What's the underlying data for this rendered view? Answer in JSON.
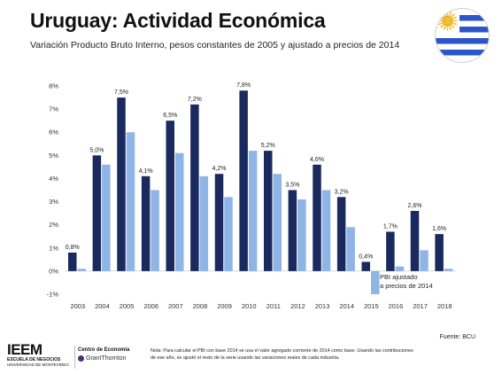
{
  "header": {
    "title": "Uruguay: Actividad Económica",
    "subtitle": "Variación Producto Bruto Interno, pesos constantes de 2005 y ajustado a precios de 2014"
  },
  "chart_data": {
    "type": "bar",
    "title": "",
    "xlabel": "",
    "ylabel": "",
    "ylim": [
      -1,
      8
    ],
    "yticks": [
      "-1%",
      "0%",
      "1%",
      "2%",
      "3%",
      "4%",
      "5%",
      "6%",
      "7%",
      "8%"
    ],
    "grid": false,
    "categories": [
      "2003",
      "2004",
      "2005",
      "2006",
      "2007",
      "2008",
      "2009",
      "2010",
      "2011",
      "2012",
      "2013",
      "2014",
      "2015",
      "2016",
      "2017",
      "2018"
    ],
    "series": [
      {
        "name": "",
        "color": "#1b2a5e",
        "values": [
          0.8,
          5.0,
          7.5,
          4.1,
          6.5,
          7.2,
          4.2,
          7.8,
          5.2,
          3.5,
          4.6,
          3.2,
          0.4,
          1.7,
          2.6,
          1.6
        ],
        "labels": [
          "0,8%",
          "5,0%",
          "7,5%",
          "4,1%",
          "6,5%",
          "7,2%",
          "4,2%",
          "7,8%",
          "5,2%",
          "3,5%",
          "4,6%",
          "3,2%",
          "0,4%",
          "1,7%",
          "2,6%",
          "1,6%"
        ]
      },
      {
        "name": "PBI ajustado a precios de 2014",
        "color": "#8fb4e6",
        "values": [
          0.1,
          4.6,
          6.0,
          3.5,
          5.1,
          4.1,
          3.2,
          5.2,
          4.2,
          3.1,
          3.5,
          1.9,
          -1.0,
          0.2,
          0.9,
          0.1
        ]
      }
    ],
    "annotation": "PBI ajustado a precios de 2014"
  },
  "footer": {
    "source": "Fuente: BCU",
    "ieem_logo": "IEEM",
    "ieem_line1": "ESCUELA DE NEGOCIOS",
    "ieem_line2": "UNIVERSIDAD DE MONTEVIDEO",
    "centro_title": "Centro de Economía",
    "grant_thornton": "GrantThornton",
    "nota": "Nota: Para calcular el PBI con base 2014 se usa el valor agregado corriente de 2014 como base. Usando las contribuciones de ese año, se ajustó el resto de la serie usando las variaciones reales de cada industria."
  },
  "colors": {
    "dark_bar": "#1b2a5e",
    "light_bar": "#8fb4e6",
    "flag_blue": "#2b55c8",
    "flag_sun": "#f2c12e"
  }
}
